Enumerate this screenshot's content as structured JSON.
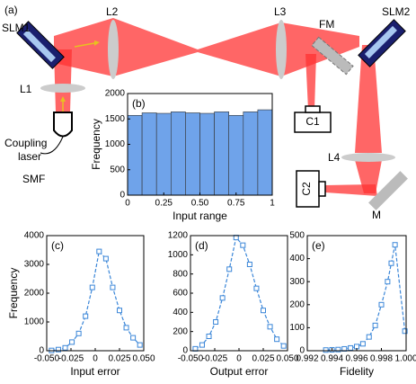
{
  "diagram": {
    "panel": "(a)",
    "labels": [
      "SLM1",
      "L2",
      "L3",
      "FM",
      "SLM2",
      "L1",
      "Coupling",
      "laser",
      "SMF",
      "C1",
      "C2",
      "L4",
      "M"
    ]
  },
  "chart_data": [
    {
      "type": "histogram",
      "panel_label": "(b)",
      "xlabel": "Input range",
      "ylabel": "Frequency",
      "color": "#6fa3ea",
      "bins": [
        0,
        0.1,
        0.2,
        0.3,
        0.4,
        0.5,
        0.6,
        0.7,
        0.8,
        0.9,
        1
      ],
      "values": [
        1570,
        1620,
        1610,
        1640,
        1620,
        1610,
        1640,
        1570,
        1640,
        1680
      ],
      "xlim": [
        0,
        1
      ],
      "ylim": [
        0,
        2000
      ],
      "xticks": [
        0,
        0.25,
        {
          "value": 0.5,
          "label": "0.50"
        },
        0.75,
        1
      ],
      "yticks": [
        0,
        500,
        1000,
        1500,
        2000
      ]
    },
    {
      "type": "line",
      "panel_label": "(c)",
      "xlabel": "Input error",
      "ylabel": "Frequency",
      "color": "#3a86d8",
      "x": [
        -0.045,
        -0.038,
        -0.031,
        -0.024,
        -0.017,
        -0.01,
        -0.003,
        0.004,
        0.011,
        0.018,
        0.025,
        0.032,
        0.039,
        0.046
      ],
      "values": [
        10,
        40,
        100,
        300,
        600,
        1200,
        2200,
        3450,
        3200,
        2200,
        1400,
        800,
        450,
        200
      ],
      "xlim": [
        -0.05,
        0.05
      ],
      "ylim": [
        0,
        4000
      ],
      "xticks": [
        {
          "value": -0.05,
          "label": "-0.050"
        },
        -0.025,
        0,
        0.025,
        {
          "value": 0.05,
          "label": "0.050"
        }
      ],
      "yticks": [
        0,
        1000,
        2000,
        3000,
        4000
      ]
    },
    {
      "type": "line",
      "panel_label": "(d)",
      "xlabel": "Output error",
      "color": "#3a86d8",
      "x": [
        -0.045,
        -0.038,
        -0.031,
        -0.024,
        -0.017,
        -0.01,
        -0.003,
        0.004,
        0.011,
        0.018,
        0.025,
        0.032,
        0.039,
        0.046
      ],
      "values": [
        20,
        60,
        150,
        300,
        550,
        850,
        1180,
        1100,
        900,
        650,
        420,
        250,
        120,
        50
      ],
      "xlim": [
        -0.05,
        0.05
      ],
      "ylim": [
        0,
        1200
      ],
      "xticks": [
        {
          "value": -0.05,
          "label": "-0.050"
        },
        -0.025,
        0,
        0.025,
        {
          "value": 0.05,
          "label": "0.050"
        }
      ],
      "yticks": [
        0,
        200,
        400,
        600,
        800,
        1000,
        1200
      ]
    },
    {
      "type": "line",
      "panel_label": "(e)",
      "xlabel": "Fidelity",
      "color": "#3a86d8",
      "x": [
        0.9935,
        0.994,
        0.9945,
        0.995,
        0.9955,
        0.996,
        0.9965,
        0.997,
        0.9975,
        0.998,
        0.9985,
        0.9988,
        0.9991,
        0.9999
      ],
      "values": [
        3,
        4,
        5,
        8,
        12,
        18,
        30,
        60,
        110,
        200,
        300,
        380,
        460,
        85
      ],
      "xlim": [
        0.992,
        1
      ],
      "ylim": [
        0,
        500
      ],
      "xticks": [
        0.992,
        0.994,
        0.996,
        0.998,
        {
          "value": 1,
          "label": "1.000"
        }
      ],
      "yticks": [
        0,
        100,
        200,
        300,
        400,
        500
      ]
    }
  ]
}
